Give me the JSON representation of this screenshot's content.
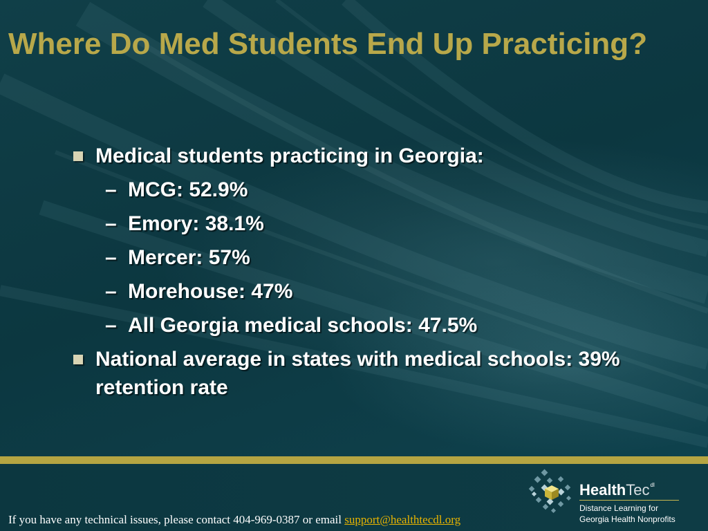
{
  "slide": {
    "title": "Where Do Med Students End Up Practicing?",
    "bullets": [
      {
        "text": "Medical students practicing in Georgia:",
        "sub": [
          "MCG:  52.9%",
          "Emory:  38.1%",
          "Mercer:  57%",
          "Morehouse:  47%",
          "All Georgia medical schools:  47.5%"
        ]
      },
      {
        "text": "National average in states with medical schools: 39% retention rate",
        "sub": []
      }
    ],
    "dash_glyph": "–"
  },
  "footer": {
    "contact_prefix": "If you have any technical issues, please contact 404-969-0387 or email ",
    "contact_email": "support@healthtecdl.org"
  },
  "logo": {
    "name_bold": "Health",
    "name_light": "Tec",
    "superscript": "dl",
    "tagline_line1": "Distance Learning for",
    "tagline_line2": "Georgia Health Nonprofits",
    "icon": "cube-cluster-icon"
  },
  "colors": {
    "background": "#0e3b44",
    "title": "#b8a84a",
    "accent_rule": "#b5a542",
    "link": "#e8b400",
    "bullet_square": "#d8d4b4"
  }
}
